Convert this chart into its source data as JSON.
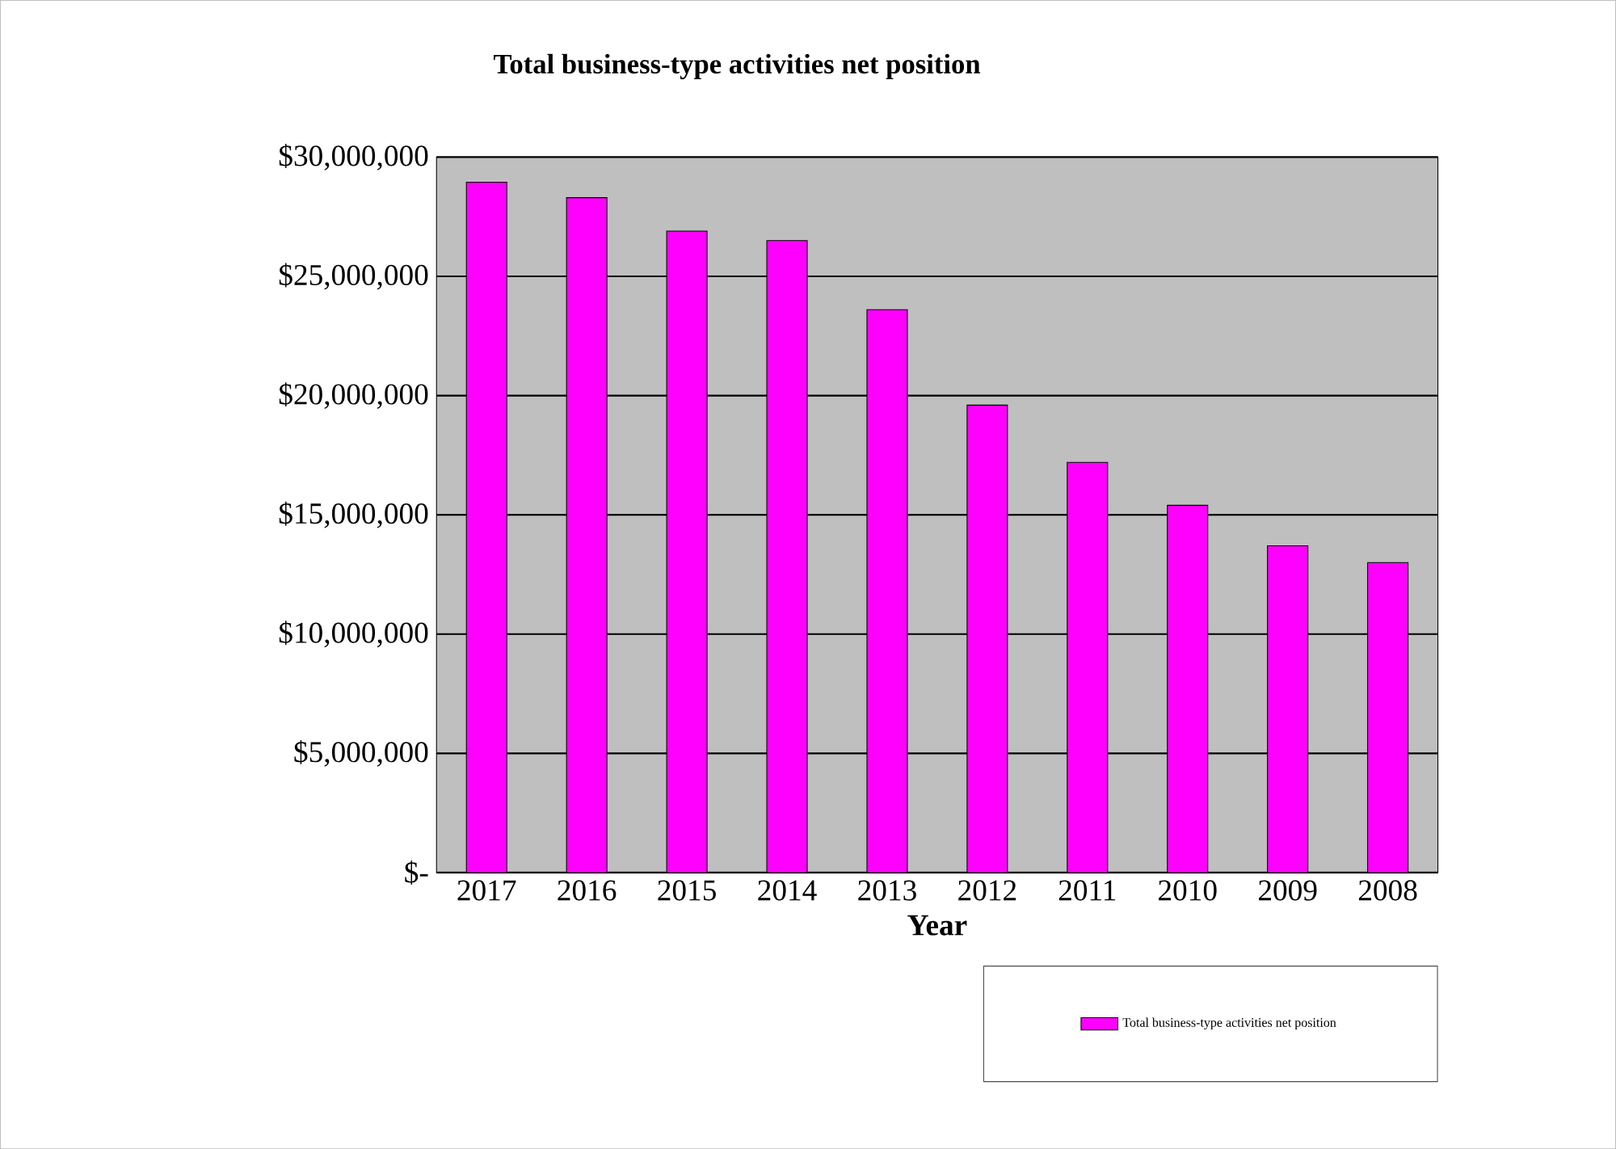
{
  "chart_data": {
    "type": "bar",
    "title": "Total business-type activities net position",
    "xlabel": "Year",
    "categories": [
      "2017",
      "2016",
      "2015",
      "2014",
      "2013",
      "2012",
      "2011",
      "2010",
      "2009",
      "2008"
    ],
    "series": [
      {
        "name": "Total business-type activities net position",
        "color": "#ff00ff",
        "values": [
          28950000,
          28300000,
          26900000,
          26500000,
          23600000,
          19600000,
          17200000,
          15400000,
          13700000,
          13000000
        ]
      }
    ],
    "ylim": [
      0,
      30000000
    ],
    "yticks": [
      {
        "value": 0,
        "label": "$-"
      },
      {
        "value": 5000000,
        "label": "$5,000,000"
      },
      {
        "value": 10000000,
        "label": "$10,000,000"
      },
      {
        "value": 15000000,
        "label": "$15,000,000"
      },
      {
        "value": 20000000,
        "label": "$20,000,000"
      },
      {
        "value": 25000000,
        "label": "$25,000,000"
      },
      {
        "value": 30000000,
        "label": "$30,000,000"
      }
    ],
    "grid": "y",
    "legend": "bottom right"
  }
}
